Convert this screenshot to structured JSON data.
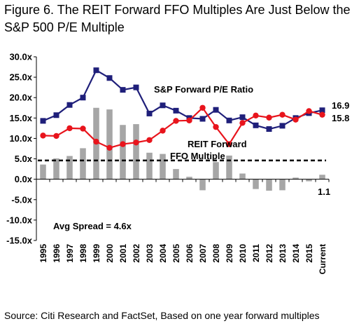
{
  "title": "Figure 6. The REIT Forward FFO Multiples Are Just Below the S&P 500 P/E Multiple",
  "source": "Source: Citi Research and FactSet, Based on one year forward multiples",
  "colors": {
    "pe_line": "#1f1f7a",
    "ffo_line": "#e8141c",
    "bars": "#a6a6a6",
    "avg_line": "#000000"
  },
  "chart_data": {
    "type": "bar+line",
    "categories": [
      "1995",
      "1996",
      "1997",
      "1998",
      "1999",
      "2000",
      "2001",
      "2002",
      "2003",
      "2004",
      "2005",
      "2006",
      "2007",
      "2008",
      "2009",
      "2010",
      "2011",
      "2012",
      "2013",
      "2014",
      "2015",
      "Current"
    ],
    "ylim": [
      -15,
      30
    ],
    "yticks": [
      "30.0x",
      "25.0x",
      "20.0x",
      "15.0x",
      "10.0x",
      "5.0x",
      "0.0x",
      "-5.0x",
      "-10.0x",
      "-15.0x"
    ],
    "ytick_values": [
      30,
      25,
      20,
      15,
      10,
      5,
      0,
      -5,
      -10,
      -15
    ],
    "grid": false,
    "series": [
      {
        "name": "S&P Forward P/E Ratio",
        "type": "line",
        "values": [
          14.3,
          15.7,
          18.2,
          20.0,
          26.7,
          24.8,
          21.9,
          22.5,
          16.1,
          18.1,
          16.8,
          15.0,
          14.8,
          17.0,
          14.4,
          15.2,
          13.2,
          12.3,
          13.1,
          15.0,
          16.2,
          16.9
        ]
      },
      {
        "name": "REIT Forward FFO Multiple",
        "type": "line",
        "values": [
          10.7,
          10.6,
          12.5,
          12.4,
          9.2,
          7.7,
          8.6,
          9.0,
          9.6,
          11.9,
          14.3,
          14.4,
          17.5,
          12.8,
          8.6,
          13.8,
          15.6,
          15.1,
          15.8,
          14.6,
          16.7,
          15.8
        ]
      },
      {
        "name": "Spread",
        "type": "bar",
        "values": [
          3.6,
          5.1,
          5.7,
          7.6,
          17.5,
          17.1,
          13.3,
          13.5,
          6.5,
          6.2,
          2.5,
          0.6,
          -2.7,
          4.2,
          5.8,
          1.4,
          -2.4,
          -2.8,
          -2.7,
          0.4,
          -0.5,
          1.1
        ]
      }
    ],
    "average_spread": 4.6,
    "annotations": {
      "pe_label": "S&P Forward P/E Ratio",
      "ffo_label_line1": "REIT Forward",
      "ffo_label_line2": "FFO Multiple",
      "avg_label": "Avg Spread = 4.6x",
      "end_pe": "16.9",
      "end_ffo": "15.8",
      "end_spread": "1.1"
    }
  }
}
